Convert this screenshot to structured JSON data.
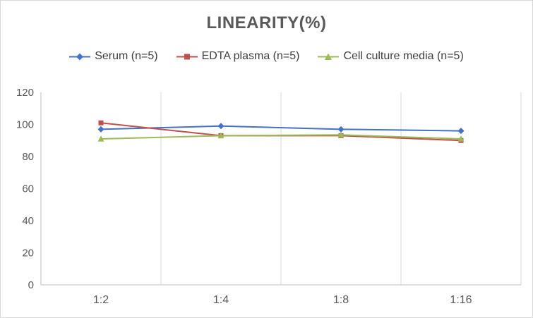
{
  "chart_data": {
    "type": "line",
    "title": "LINEARITY(%)",
    "categories": [
      "1:2",
      "1:4",
      "1:8",
      "1:16"
    ],
    "series": [
      {
        "name": "Serum (n=5)",
        "color": "#4472C4",
        "marker": "diamond",
        "values": [
          97,
          99,
          97,
          96
        ]
      },
      {
        "name": "EDTA plasma (n=5)",
        "color": "#C0504D",
        "marker": "square",
        "values": [
          101,
          93,
          93,
          90
        ]
      },
      {
        "name": "Cell culture media (n=5)",
        "color": "#9BBB59",
        "marker": "triangle",
        "values": [
          91,
          93,
          93.5,
          91
        ]
      }
    ],
    "xlabel": "",
    "ylabel": "",
    "ylim": [
      0,
      120
    ],
    "yticks": [
      0,
      20,
      40,
      60,
      80,
      100,
      120
    ],
    "grid": "vertical",
    "legend_position": "top",
    "colors": {
      "axis": "#BFBFBF",
      "gridline": "#D9D9D9",
      "tick_label": "#595959",
      "title": "#595959",
      "legend_text": "#404040"
    }
  }
}
